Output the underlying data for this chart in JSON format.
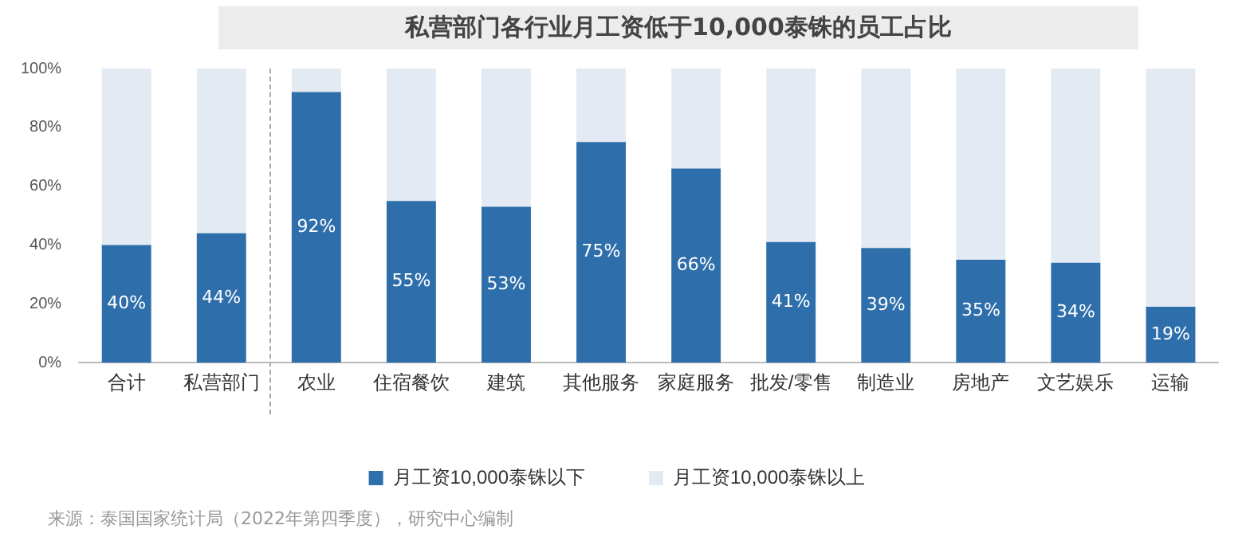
{
  "chart_data": {
    "type": "bar",
    "stacked": true,
    "title": "私营部门各行业月工资低于10,000泰铢的员工占比",
    "categories": [
      "合计",
      "私营部门",
      "农业",
      "住宿餐饮",
      "建筑",
      "其他服务",
      "家庭服务",
      "批发/零售",
      "制造业",
      "房地产",
      "文艺娱乐",
      "运输"
    ],
    "series": [
      {
        "name": "月工资10,000泰铢以下",
        "color": "#2e6fab",
        "values": [
          40,
          44,
          92,
          55,
          53,
          75,
          66,
          41,
          39,
          35,
          34,
          19
        ],
        "value_labels": [
          "40%",
          "44%",
          "92%",
          "55%",
          "53%",
          "75%",
          "66%",
          "41%",
          "39%",
          "35%",
          "34%",
          "19%"
        ]
      },
      {
        "name": "月工资10,000泰铢以上",
        "color": "#e3eaf3",
        "values": [
          60,
          56,
          8,
          45,
          47,
          25,
          34,
          59,
          61,
          65,
          66,
          81
        ]
      }
    ],
    "ylim": [
      0,
      100
    ],
    "yticks": [
      {
        "value": 0,
        "label": "0%"
      },
      {
        "value": 20,
        "label": "20%"
      },
      {
        "value": 40,
        "label": "40%"
      },
      {
        "value": 60,
        "label": "60%"
      },
      {
        "value": 80,
        "label": "80%"
      },
      {
        "value": 100,
        "label": "100%"
      }
    ],
    "grid": false,
    "legend": "bottom",
    "annotations": [
      "来源：泰国国家统计局（2022年第四季度），研究中心编制"
    ]
  }
}
